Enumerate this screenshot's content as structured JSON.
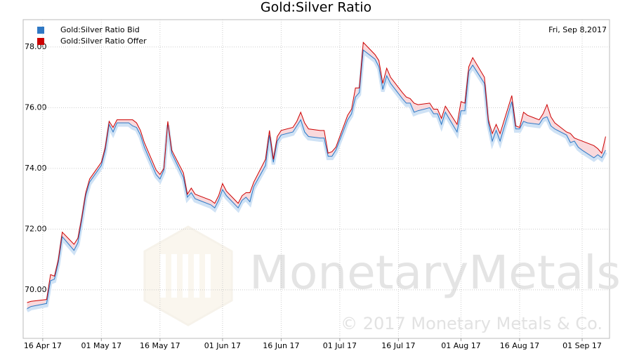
{
  "chart_data": {
    "type": "line",
    "title": "Gold:Silver Ratio",
    "date_label": "Fri, Sep 8,2017",
    "watermark": "MonetaryMetals",
    "watermark_copyright": "© 2017 Monetary Metals & Co.",
    "x": [
      "2017-04-12",
      "2017-04-13",
      "2017-04-17",
      "2017-04-18",
      "2017-04-19",
      "2017-04-20",
      "2017-04-21",
      "2017-04-24",
      "2017-04-25",
      "2017-04-26",
      "2017-04-27",
      "2017-04-28",
      "2017-05-01",
      "2017-05-02",
      "2017-05-03",
      "2017-05-04",
      "2017-05-05",
      "2017-05-08",
      "2017-05-09",
      "2017-05-10",
      "2017-05-11",
      "2017-05-12",
      "2017-05-15",
      "2017-05-16",
      "2017-05-17",
      "2017-05-18",
      "2017-05-19",
      "2017-05-22",
      "2017-05-23",
      "2017-05-24",
      "2017-05-25",
      "2017-05-26",
      "2017-05-29",
      "2017-05-30",
      "2017-05-31",
      "2017-06-01",
      "2017-06-02",
      "2017-06-05",
      "2017-06-06",
      "2017-06-07",
      "2017-06-08",
      "2017-06-09",
      "2017-06-12",
      "2017-06-13",
      "2017-06-14",
      "2017-06-15",
      "2017-06-16",
      "2017-06-19",
      "2017-06-20",
      "2017-06-21",
      "2017-06-22",
      "2017-06-23",
      "2017-06-26",
      "2017-06-27",
      "2017-06-28",
      "2017-06-29",
      "2017-06-30",
      "2017-07-03",
      "2017-07-04",
      "2017-07-05",
      "2017-07-06",
      "2017-07-07",
      "2017-07-10",
      "2017-07-11",
      "2017-07-12",
      "2017-07-13",
      "2017-07-14",
      "2017-07-17",
      "2017-07-18",
      "2017-07-19",
      "2017-07-20",
      "2017-07-21",
      "2017-07-24",
      "2017-07-25",
      "2017-07-26",
      "2017-07-27",
      "2017-07-28",
      "2017-07-31",
      "2017-08-01",
      "2017-08-02",
      "2017-08-03",
      "2017-08-04",
      "2017-08-07",
      "2017-08-08",
      "2017-08-09",
      "2017-08-10",
      "2017-08-11",
      "2017-08-14",
      "2017-08-15",
      "2017-08-16",
      "2017-08-17",
      "2017-08-18",
      "2017-08-21",
      "2017-08-22",
      "2017-08-23",
      "2017-08-24",
      "2017-08-25",
      "2017-08-28",
      "2017-08-29",
      "2017-08-30",
      "2017-08-31",
      "2017-09-01",
      "2017-09-04",
      "2017-09-05",
      "2017-09-06",
      "2017-09-07"
    ],
    "series": [
      {
        "name": "Gold:Silver Ratio Bid",
        "color": "#2f78c4",
        "values": [
          69.38,
          69.45,
          69.55,
          70.3,
          70.35,
          70.9,
          71.75,
          71.3,
          71.55,
          72.3,
          73.1,
          73.55,
          74.1,
          74.6,
          75.45,
          75.2,
          75.5,
          75.5,
          75.4,
          75.35,
          75.1,
          74.7,
          73.8,
          73.65,
          73.95,
          75.5,
          74.5,
          73.7,
          73.05,
          73.2,
          73.0,
          72.95,
          72.8,
          72.7,
          72.95,
          73.3,
          73.1,
          72.7,
          72.95,
          73.05,
          72.9,
          73.4,
          74.1,
          75.1,
          74.2,
          74.9,
          75.1,
          75.2,
          75.4,
          75.6,
          75.2,
          75.05,
          75.0,
          75.0,
          74.4,
          74.4,
          74.6,
          75.6,
          75.8,
          76.35,
          76.5,
          77.9,
          77.6,
          77.35,
          76.6,
          77.05,
          76.8,
          76.3,
          76.15,
          76.15,
          75.85,
          75.9,
          76.0,
          75.8,
          75.8,
          75.45,
          75.85,
          75.2,
          75.9,
          75.9,
          77.2,
          77.4,
          76.8,
          75.5,
          74.9,
          75.25,
          74.9,
          76.2,
          75.3,
          75.3,
          75.55,
          75.5,
          75.45,
          75.65,
          75.7,
          75.4,
          75.3,
          75.1,
          74.85,
          74.9,
          74.7,
          74.6,
          74.35,
          74.45,
          74.35,
          74.6
        ]
      },
      {
        "name": "Gold:Silver Ratio Offer",
        "color": "#cc0000",
        "values": [
          69.58,
          69.62,
          69.68,
          70.5,
          70.45,
          71.0,
          71.9,
          71.5,
          71.7,
          72.4,
          73.2,
          73.65,
          74.2,
          74.7,
          75.55,
          75.35,
          75.6,
          75.6,
          75.6,
          75.5,
          75.25,
          74.85,
          73.95,
          73.8,
          74.0,
          75.55,
          74.6,
          73.85,
          73.15,
          73.35,
          73.15,
          73.1,
          72.95,
          72.85,
          73.1,
          73.5,
          73.25,
          72.85,
          73.1,
          73.2,
          73.2,
          73.55,
          74.3,
          75.25,
          74.3,
          75.05,
          75.25,
          75.35,
          75.55,
          75.85,
          75.5,
          75.3,
          75.25,
          75.25,
          74.5,
          74.55,
          74.7,
          75.75,
          75.95,
          76.65,
          76.65,
          78.15,
          77.75,
          77.55,
          76.8,
          77.3,
          77.0,
          76.5,
          76.35,
          76.3,
          76.15,
          76.1,
          76.15,
          75.95,
          75.95,
          75.65,
          76.05,
          75.45,
          76.2,
          76.15,
          77.35,
          77.65,
          77.0,
          75.6,
          75.15,
          75.45,
          75.15,
          76.4,
          75.4,
          75.35,
          75.85,
          75.75,
          75.6,
          75.8,
          76.1,
          75.7,
          75.5,
          75.2,
          75.15,
          75.0,
          74.95,
          74.9,
          74.75,
          74.65,
          74.5,
          75.05
        ]
      }
    ],
    "xlim": [
      "2017-04-11",
      "2017-09-08"
    ],
    "xticks": [
      {
        "value": "2017-04-16",
        "label": "16 Apr 17"
      },
      {
        "value": "2017-05-01",
        "label": "01 May 17"
      },
      {
        "value": "2017-05-16",
        "label": "16 May 17"
      },
      {
        "value": "2017-06-01",
        "label": "01 Jun 17"
      },
      {
        "value": "2017-06-16",
        "label": "16 Jun 17"
      },
      {
        "value": "2017-07-01",
        "label": "01 Jul 17"
      },
      {
        "value": "2017-07-16",
        "label": "16 Jul 17"
      },
      {
        "value": "2017-08-01",
        "label": "01 Aug 17"
      },
      {
        "value": "2017-08-16",
        "label": "16 Aug 17"
      },
      {
        "value": "2017-09-01",
        "label": "01 Sep 17"
      }
    ],
    "ylim": [
      68.4,
      78.9
    ],
    "yticks": [
      {
        "value": 70,
        "label": "70.00"
      },
      {
        "value": 72,
        "label": "72.00"
      },
      {
        "value": 74,
        "label": "74.00"
      },
      {
        "value": 76,
        "label": "76.00"
      },
      {
        "value": 78,
        "label": "78.00"
      }
    ],
    "grid": true,
    "legend": "top-left"
  }
}
